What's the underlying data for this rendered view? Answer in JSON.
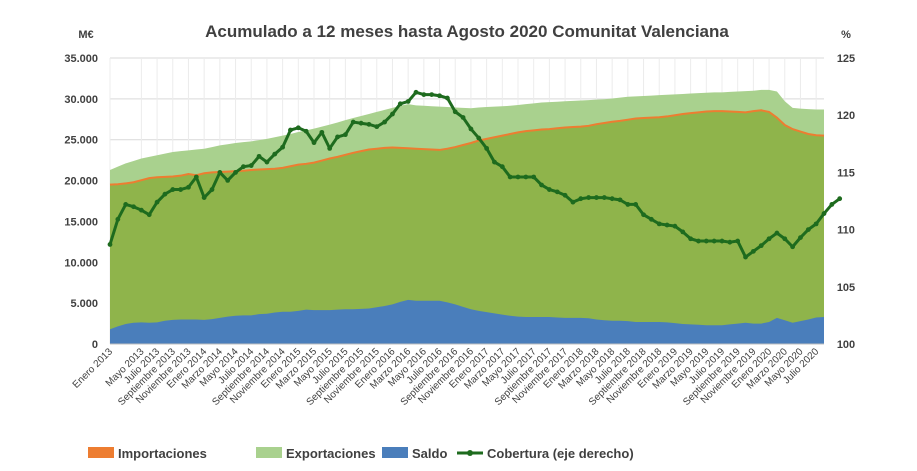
{
  "chart_data": {
    "type": "area",
    "title": "Acumulado a 12 meses hasta Agosto 2020 Comunitat Valenciana",
    "y_left_unit": "M€",
    "y_right_unit": "%",
    "y_left_ticks": [
      "0",
      "5.000",
      "10.000",
      "15.000",
      "20.000",
      "25.000",
      "30.000",
      "35.000"
    ],
    "y_right_ticks": [
      "100",
      "105",
      "110",
      "115",
      "120",
      "125"
    ],
    "ylim_left": [
      0,
      35000
    ],
    "ylim_right": [
      100,
      125
    ],
    "x_tick_labels": [
      "Enero 2013",
      "Mayo 2013",
      "Julio 2013",
      "Septiembre 2013",
      "Noviembre 2013",
      "Enero 2014",
      "Marzo 2014",
      "Mayo 2014",
      "Julio 2014",
      "Septiembre 2014",
      "Noviembre 2014",
      "Enero 2015",
      "Marzo 2015",
      "Mayo 2015",
      "Julio 2015",
      "Septiembre 2015",
      "Noviembre 2015",
      "Enero 2016",
      "Marzo 2016",
      "Mayo 2016",
      "Julio 2016",
      "Septiembre 2016",
      "Noviembre 2016",
      "Enero 2017",
      "Marzo 2017",
      "Mayo 2017",
      "Julio 2017",
      "Septiembre 2017",
      "Noviembre 2017",
      "Enero 2018",
      "Marzo 2018",
      "Mayo 2018",
      "Julio 2018",
      "Septiembre 2018",
      "Noviembre 2018",
      "Enero 2019",
      "Marzo 2019",
      "Mayo 2019",
      "Julio 2019",
      "Septiembre 2019",
      "Noviembre 2019",
      "Enero 2020",
      "Marzo 2020",
      "Mayo 2020",
      "Julio 2020"
    ],
    "x_tick_months": [
      0,
      4,
      6,
      8,
      10,
      12,
      14,
      16,
      18,
      20,
      22,
      24,
      26,
      28,
      30,
      32,
      34,
      36,
      38,
      40,
      42,
      44,
      46,
      48,
      50,
      52,
      54,
      56,
      58,
      60,
      62,
      64,
      66,
      68,
      70,
      72,
      74,
      76,
      78,
      80,
      82,
      84,
      86,
      88,
      90
    ],
    "series": [
      {
        "name": "Importaciones",
        "color": "#ed7d31",
        "axis": "left",
        "values": [
          19500,
          19550,
          19650,
          19800,
          20050,
          20300,
          20400,
          20450,
          20500,
          20600,
          20800,
          20650,
          20900,
          21000,
          21050,
          21100,
          21150,
          21200,
          21300,
          21350,
          21400,
          21450,
          21550,
          21750,
          21950,
          22050,
          22200,
          22450,
          22700,
          22900,
          23150,
          23400,
          23600,
          23800,
          23900,
          24000,
          24050,
          24000,
          23950,
          23900,
          23850,
          23800,
          23750,
          23900,
          24100,
          24350,
          24600,
          24900,
          25100,
          25300,
          25500,
          25700,
          25900,
          26050,
          26150,
          26250,
          26300,
          26400,
          26500,
          26550,
          26600,
          26700,
          26900,
          27050,
          27200,
          27300,
          27450,
          27600,
          27650,
          27700,
          27750,
          27850,
          28000,
          28150,
          28250,
          28350,
          28450,
          28500,
          28500,
          28450,
          28400,
          28350,
          28500,
          28600,
          28400,
          27700,
          26800,
          26300,
          26000,
          25700,
          25550,
          25500
        ]
      },
      {
        "name": "Exportaciones",
        "color": "#a9d18e",
        "axis": "left",
        "values": [
          21300,
          21700,
          22100,
          22400,
          22700,
          22900,
          23100,
          23300,
          23500,
          23600,
          23700,
          23800,
          23900,
          24100,
          24300,
          24450,
          24600,
          24700,
          24800,
          24950,
          25100,
          25300,
          25500,
          25700,
          25950,
          26150,
          26350,
          26600,
          26850,
          27100,
          27400,
          27650,
          27900,
          28150,
          28400,
          28650,
          28900,
          29150,
          29350,
          29200,
          29150,
          29100,
          29050,
          29000,
          28950,
          28900,
          28850,
          28950,
          29000,
          29050,
          29100,
          29150,
          29250,
          29350,
          29450,
          29550,
          29600,
          29650,
          29700,
          29750,
          29800,
          29850,
          29900,
          29950,
          30050,
          30150,
          30250,
          30300,
          30350,
          30400,
          30450,
          30500,
          30550,
          30600,
          30650,
          30700,
          30750,
          30800,
          30800,
          30850,
          30900,
          30950,
          31000,
          31100,
          31100,
          30900,
          29700,
          28900,
          28800,
          28750,
          28700,
          28700
        ]
      },
      {
        "name": "Saldo",
        "color": "#4a7ebb",
        "axis": "left",
        "values": [
          1800,
          2150,
          2450,
          2600,
          2650,
          2600,
          2650,
          2850,
          2950,
          3000,
          3000,
          3000,
          2950,
          3050,
          3200,
          3350,
          3450,
          3500,
          3500,
          3650,
          3700,
          3850,
          3950,
          3950,
          4050,
          4200,
          4150,
          4150,
          4150,
          4200,
          4250,
          4250,
          4300,
          4350,
          4500,
          4650,
          4850,
          5150,
          5400,
          5300,
          5300,
          5300,
          5300,
          5100,
          4850,
          4550,
          4250,
          4050,
          3900,
          3750,
          3600,
          3450,
          3350,
          3300,
          3300,
          3300,
          3300,
          3250,
          3200,
          3200,
          3200,
          3150,
          3000,
          2900,
          2850,
          2850,
          2800,
          2700,
          2700,
          2700,
          2700,
          2650,
          2550,
          2450,
          2400,
          2350,
          2300,
          2300,
          2300,
          2400,
          2500,
          2600,
          2500,
          2500,
          2700,
          3200,
          2900,
          2600,
          2800,
          3000,
          3250,
          3300
        ]
      },
      {
        "name": "Cobertura (eje derecho)",
        "color": "#1e6b1e",
        "axis": "right",
        "values": [
          108.7,
          110.9,
          112.2,
          112.0,
          111.7,
          111.3,
          112.4,
          113.1,
          113.5,
          113.5,
          113.7,
          114.6,
          112.8,
          113.5,
          115.0,
          114.3,
          115.0,
          115.5,
          115.6,
          116.4,
          115.9,
          116.6,
          117.2,
          118.7,
          118.9,
          118.6,
          117.6,
          118.5,
          117.1,
          118.1,
          118.3,
          119.4,
          119.3,
          119.2,
          119.0,
          119.4,
          120.1,
          121.0,
          121.2,
          122.0,
          121.8,
          121.8,
          121.7,
          121.5,
          120.3,
          119.8,
          118.8,
          118.0,
          117.1,
          115.9,
          115.5,
          114.6,
          114.6,
          114.6,
          114.6,
          113.9,
          113.5,
          113.3,
          113.0,
          112.4,
          112.7,
          112.8,
          112.8,
          112.8,
          112.7,
          112.6,
          112.2,
          112.2,
          111.3,
          110.9,
          110.5,
          110.4,
          110.3,
          109.8,
          109.2,
          109.0,
          109.0,
          109.0,
          109.0,
          108.9,
          109.0,
          107.6,
          108.1,
          108.6,
          109.2,
          109.7,
          109.2,
          108.5,
          109.3,
          110.0,
          110.5,
          111.4,
          112.2,
          112.7
        ]
      }
    ],
    "legend": {
      "placement": "bottom"
    }
  }
}
